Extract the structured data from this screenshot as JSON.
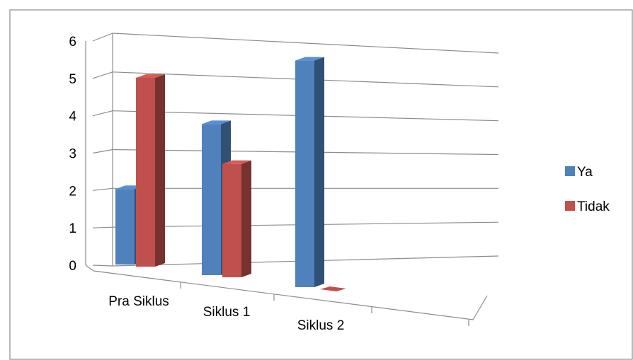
{
  "chart_data": {
    "type": "bar",
    "categories": [
      "Pra Siklus",
      "Siklus 1",
      "Siklus 2"
    ],
    "series": [
      {
        "name": "Ya",
        "values": [
          2,
          4,
          6
        ],
        "color": "#4F81BD"
      },
      {
        "name": "Tidak",
        "values": [
          5,
          3,
          0
        ],
        "color": "#C0504D"
      }
    ],
    "ylim": [
      0,
      6
    ],
    "yticks": [
      "0",
      "1",
      "2",
      "3",
      "4",
      "5",
      "6"
    ],
    "grid": true,
    "legend": "right",
    "style": "3d-clustered"
  }
}
